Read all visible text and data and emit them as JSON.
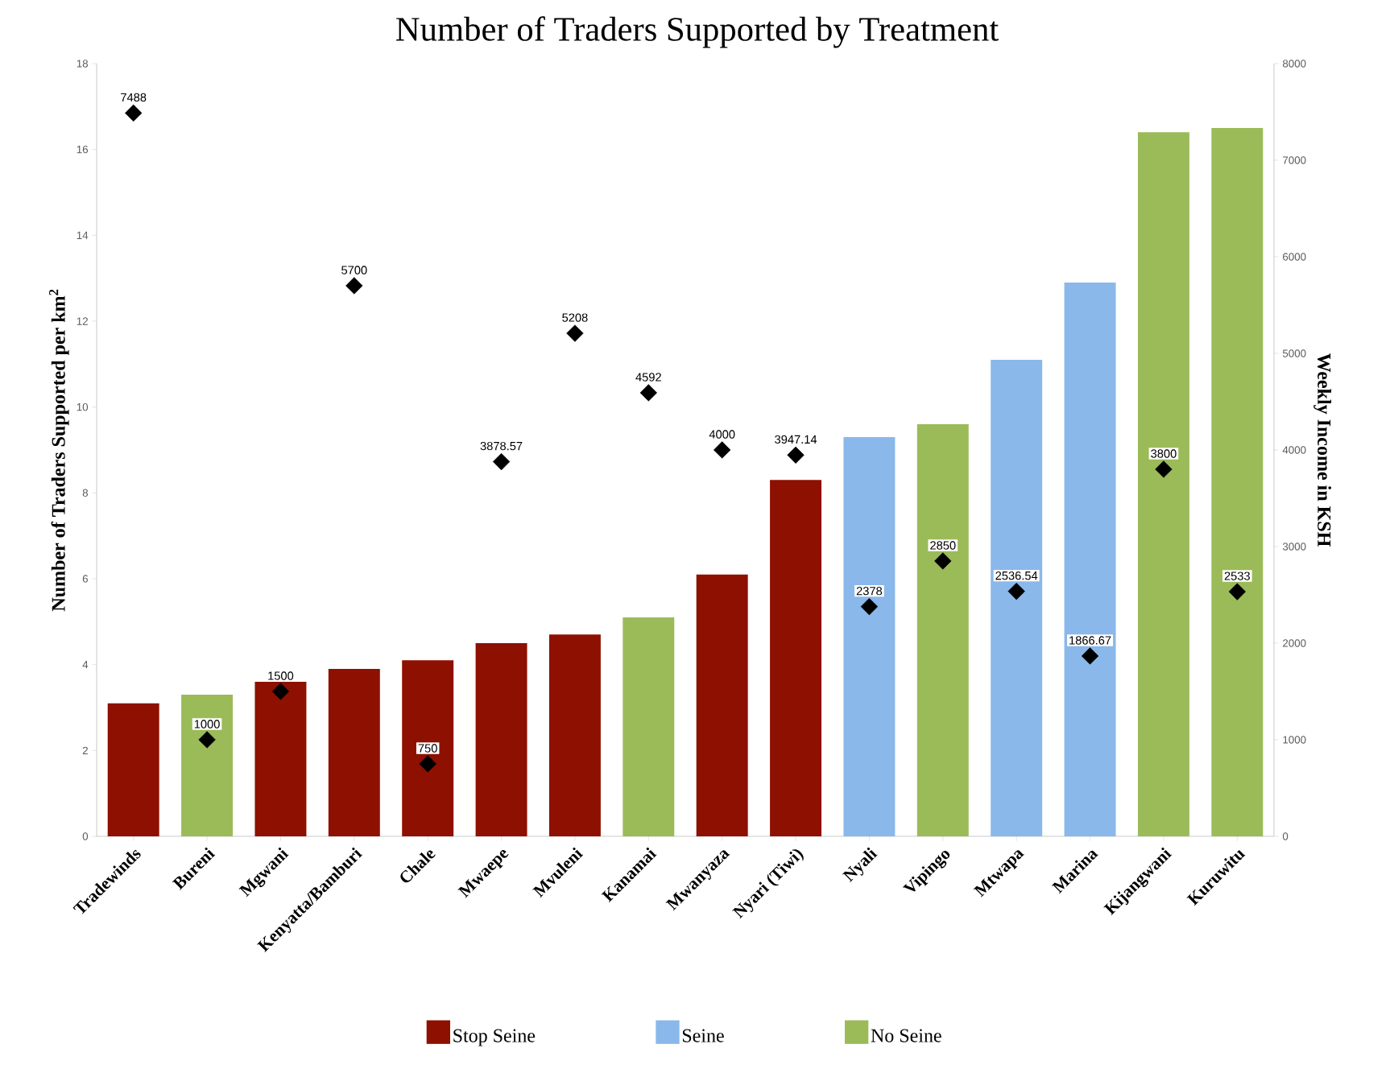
{
  "chart_data": {
    "type": "bar",
    "title": "Number of Traders Supported by Treatment",
    "ylabel": "Number of Traders Supported per km$^{2}$",
    "y2label": "Weekly Income in KSH",
    "categories": [
      "Tradewinds",
      "Bureni",
      "Mgwani",
      "Kenyatta/Bamburi",
      "Chale",
      "Mwaepe",
      "Mvuleni",
      "Kanamai",
      "Mwanyaza",
      "Nyari (Tiwi)",
      "Nyali",
      "Vipingo",
      "Mtwapa",
      "Marina",
      "Kijangwani",
      "Kuruwitu"
    ],
    "series": [
      {
        "name": "Stop Seine",
        "color": "#8e1000",
        "values": [
          3.1,
          null,
          3.6,
          3.9,
          4.1,
          4.5,
          4.7,
          null,
          6.1,
          8.3,
          null,
          null,
          null,
          null,
          null,
          null
        ]
      },
      {
        "name": "Seine",
        "color": "#8ab8ea",
        "values": [
          null,
          null,
          null,
          null,
          null,
          null,
          null,
          null,
          null,
          null,
          9.3,
          null,
          11.1,
          12.9,
          null,
          null
        ]
      },
      {
        "name": "No Seine",
        "color": "#9bbb59",
        "values": [
          null,
          3.3,
          null,
          null,
          null,
          null,
          null,
          5.1,
          null,
          null,
          null,
          9.6,
          null,
          null,
          16.4,
          16.5
        ]
      },
      {
        "type": "scatter",
        "axis": "y2",
        "color": "#000000",
        "marker": "diamond",
        "data_labels": true,
        "values": [
          7488,
          1000,
          1500,
          5700,
          750,
          3878.57,
          5208,
          4592,
          4000,
          3947.14,
          2378,
          2850,
          2536.54,
          1866.67,
          3800,
          2533
        ]
      }
    ],
    "ylim": [
      0,
      18
    ],
    "yticks": [
      0,
      2,
      4,
      6,
      8,
      10,
      12,
      14,
      16,
      18
    ],
    "y2lim": [
      0,
      8000
    ],
    "y2ticks": [
      0,
      1000,
      2000,
      3000,
      4000,
      5000,
      6000,
      7000,
      8000
    ],
    "legend": "bottom"
  }
}
